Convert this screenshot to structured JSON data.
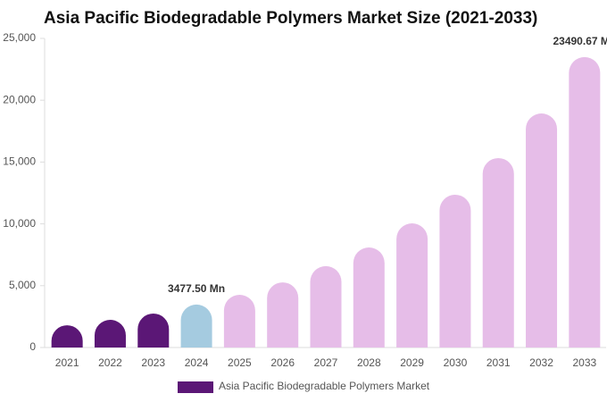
{
  "chart_data": {
    "type": "bar",
    "title": "Asia Pacific Biodegradable Polymers Market Size (2021-2033)",
    "categories": [
      "2021",
      "2022",
      "2023",
      "2024",
      "2025",
      "2026",
      "2027",
      "2028",
      "2029",
      "2030",
      "2031",
      "2032",
      "2033"
    ],
    "series": [
      {
        "name": "Asia Pacific Biodegradable Polymers Market",
        "color": "#5b1776",
        "values": [
          1800,
          2240,
          2750,
          3477.5,
          4260,
          5270,
          6580,
          8090,
          10040,
          12360,
          15320,
          18930,
          23490.67
        ],
        "value_labels": [
          null,
          null,
          null,
          "3477.50 Mn",
          null,
          null,
          null,
          null,
          null,
          null,
          null,
          null,
          "23490.67 Mn"
        ],
        "colors": [
          "#5b1776",
          "#5b1776",
          "#5b1776",
          "#a5cbe0",
          "#e6bde8",
          "#e6bde8",
          "#e6bde8",
          "#e6bde8",
          "#e6bde8",
          "#e6bde8",
          "#e6bde8",
          "#e6bde8",
          "#e6bde8"
        ]
      }
    ],
    "ylim": [
      0,
      25000
    ],
    "yticks": [
      0,
      {
        "value": 5000,
        "label": "5,000"
      },
      {
        "value": 10000,
        "label": "10,000"
      },
      {
        "value": 15000,
        "label": "15,000"
      },
      {
        "value": 20000,
        "label": "20,000"
      },
      {
        "value": 25000,
        "label": "25,000"
      }
    ],
    "legend": "bottom"
  }
}
